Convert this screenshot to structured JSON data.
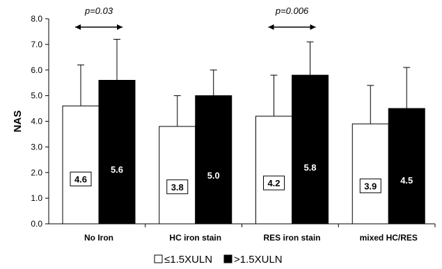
{
  "chart_data": {
    "type": "bar",
    "title": "",
    "xlabel": "",
    "ylabel": "NAS",
    "ylim": [
      0,
      8
    ],
    "yticks": [
      "0.0",
      "1.0",
      "2.0",
      "3.0",
      "4.0",
      "5.0",
      "6.0",
      "7.0",
      "8.0"
    ],
    "grid": false,
    "error_bars": true,
    "legend_position": "bottom",
    "categories": [
      "No Iron",
      "HC iron stain",
      "RES iron stain",
      "mixed HC/RES"
    ],
    "series": [
      {
        "name": "≤1.5XULN",
        "color": "#ffffff",
        "values": [
          4.6,
          3.8,
          4.2,
          3.9
        ],
        "errors": [
          1.6,
          1.2,
          1.6,
          1.5
        ],
        "labels": [
          "4.6",
          "3.8",
          "4.2",
          "3.9"
        ]
      },
      {
        "name": ">1.5XULN",
        "color": "#000000",
        "values": [
          5.6,
          5.0,
          5.8,
          4.5
        ],
        "errors": [
          1.6,
          1.0,
          1.3,
          1.6
        ],
        "labels": [
          "5.6",
          "5.0",
          "5.8",
          "4.5"
        ]
      }
    ],
    "annotations": [
      {
        "category_index": 0,
        "text": "p=0.03"
      },
      {
        "category_index": 2,
        "text": "p=0.006"
      }
    ]
  }
}
